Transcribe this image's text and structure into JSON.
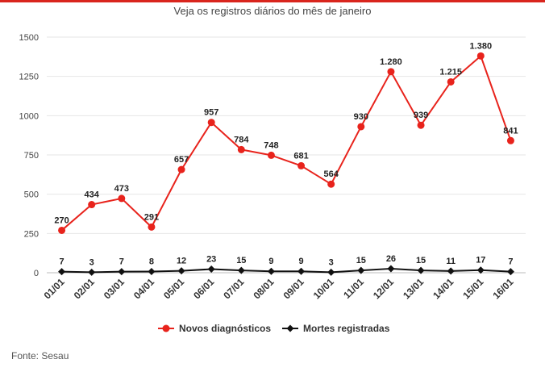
{
  "page": {
    "title": "Veja os registros diários do mês de janeiro",
    "source": "Fonte: Sesau",
    "rule_color": "#d9251d"
  },
  "chart_data": {
    "type": "line",
    "title": "Veja os registros diários do mês de janeiro",
    "categories": [
      "01/01",
      "02/01",
      "03/01",
      "04/01",
      "05/01",
      "06/01",
      "07/01",
      "08/01",
      "09/01",
      "10/01",
      "11/01",
      "12/01",
      "13/01",
      "14/01",
      "15/01",
      "16/01"
    ],
    "ylim": [
      0,
      1500
    ],
    "yticks": [
      0,
      250,
      500,
      750,
      1000,
      1250,
      1500
    ],
    "grid": true,
    "legend_position": "bottom",
    "series": [
      {
        "name": "Novos diagnósticos",
        "color": "#e8231c",
        "values": [
          270,
          434,
          473,
          291,
          657,
          957,
          784,
          748,
          681,
          564,
          930,
          1280,
          939,
          1215,
          1380,
          841
        ],
        "labels": [
          "270",
          "434",
          "473",
          "291",
          "657",
          "957",
          "784",
          "748",
          "681",
          "564",
          "930",
          "1.280",
          "939",
          "1.215",
          "1.380",
          "841"
        ]
      },
      {
        "name": "Mortes registradas",
        "color": "#111111",
        "values": [
          7,
          3,
          7,
          8,
          12,
          23,
          15,
          9,
          9,
          3,
          15,
          26,
          15,
          11,
          17,
          7
        ],
        "labels": [
          "7",
          "3",
          "7",
          "8",
          "12",
          "23",
          "15",
          "9",
          "9",
          "3",
          "15",
          "26",
          "15",
          "11",
          "17",
          "7"
        ]
      }
    ]
  }
}
